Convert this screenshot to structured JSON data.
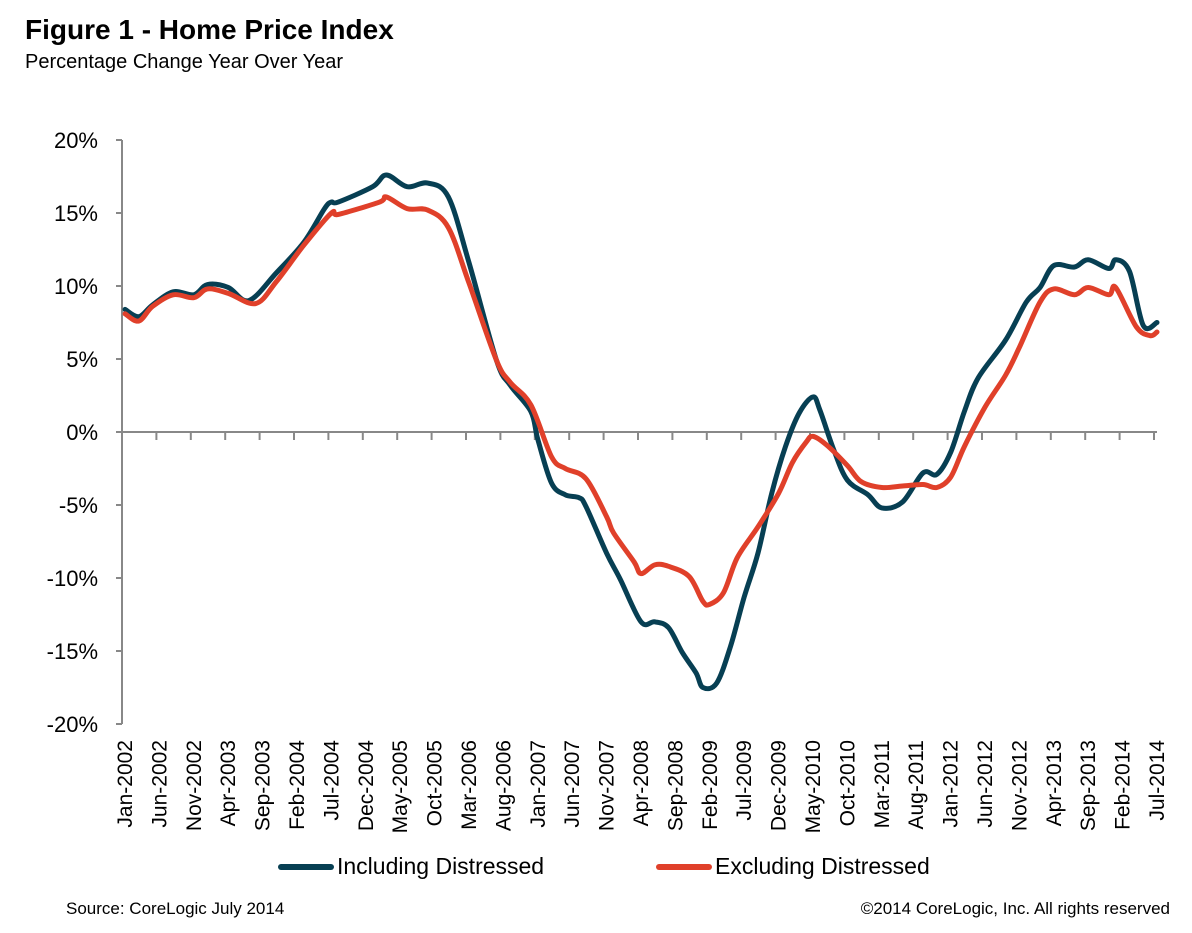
{
  "chart_data": {
    "type": "line",
    "title": "Figure 1 - Home Price Index",
    "subtitle": "Percentage Change Year Over Year",
    "xlabel": "",
    "ylabel": "",
    "ylim": [
      -20,
      20
    ],
    "yticks": [
      20,
      15,
      10,
      5,
      0,
      -5,
      -10,
      -15,
      -20
    ],
    "ytick_labels": [
      "20%",
      "15%",
      "10%",
      "5%",
      "0%",
      "-5%",
      "-10%",
      "-15%",
      "-20%"
    ],
    "xlim": [
      "2002-01",
      "2014-07"
    ],
    "xtick_labels": [
      "Jan-2002",
      "Jun-2002",
      "Nov-2002",
      "Apr-2003",
      "Sep-2003",
      "Feb-2004",
      "Jul-2004",
      "Dec-2004",
      "May-2005",
      "Oct-2005",
      "Mar-2006",
      "Aug-2006",
      "Jan-2007",
      "Jun-2007",
      "Nov-2007",
      "Apr-2008",
      "Sep-2008",
      "Feb-2009",
      "Jul-2009",
      "Dec-2009",
      "May-2010",
      "Oct-2010",
      "Mar-2011",
      "Aug-2011",
      "Jan-2012",
      "Jun-2012",
      "Nov-2012",
      "Apr-2013",
      "Sep-2013",
      "Feb-2014",
      "Jul-2014"
    ],
    "grid": false,
    "legend_position": "bottom",
    "series": [
      {
        "name": "Including Distressed",
        "color": "#073f53",
        "points": [
          [
            "2002-01",
            8.4
          ],
          [
            "2002-03",
            7.9
          ],
          [
            "2002-05",
            8.7
          ],
          [
            "2002-08",
            9.6
          ],
          [
            "2002-11",
            9.4
          ],
          [
            "2003-01",
            10.1
          ],
          [
            "2003-04",
            9.9
          ],
          [
            "2003-07",
            9.0
          ],
          [
            "2003-11",
            10.9
          ],
          [
            "2004-03",
            13.0
          ],
          [
            "2004-06",
            15.3
          ],
          [
            "2004-07",
            15.75
          ],
          [
            "2004-08",
            15.75
          ],
          [
            "2005-01",
            16.8
          ],
          [
            "2005-03",
            17.6
          ],
          [
            "2005-06",
            16.8
          ],
          [
            "2005-09",
            17.05
          ],
          [
            "2005-12",
            16.1
          ],
          [
            "2006-03",
            11.6
          ],
          [
            "2006-07",
            4.9
          ],
          [
            "2006-09",
            3.2
          ],
          [
            "2006-12",
            1.4
          ],
          [
            "2007-01",
            -0.5
          ],
          [
            "2007-03",
            -3.5
          ],
          [
            "2007-05",
            -4.3
          ],
          [
            "2007-07",
            -4.5
          ],
          [
            "2007-08",
            -5.1
          ],
          [
            "2007-11",
            -8.3
          ],
          [
            "2008-01",
            -10.1
          ],
          [
            "2008-04",
            -13.0
          ],
          [
            "2008-06",
            -13.0
          ],
          [
            "2008-08",
            -13.4
          ],
          [
            "2008-10",
            -15.1
          ],
          [
            "2008-12",
            -16.5
          ],
          [
            "2009-01",
            -17.5
          ],
          [
            "2009-03",
            -17.2
          ],
          [
            "2009-05",
            -14.7
          ],
          [
            "2009-07",
            -11.3
          ],
          [
            "2009-09",
            -8.3
          ],
          [
            "2009-11",
            -4.2
          ],
          [
            "2010-01",
            -1.0
          ],
          [
            "2010-03",
            1.3
          ],
          [
            "2010-05",
            2.4
          ],
          [
            "2010-06",
            1.5
          ],
          [
            "2010-08",
            -1.2
          ],
          [
            "2010-10",
            -3.3
          ],
          [
            "2011-01",
            -4.3
          ],
          [
            "2011-03",
            -5.2
          ],
          [
            "2011-06",
            -4.8
          ],
          [
            "2011-09",
            -2.8
          ],
          [
            "2011-11",
            -2.9
          ],
          [
            "2012-01",
            -1.4
          ],
          [
            "2012-03",
            1.4
          ],
          [
            "2012-05",
            3.7
          ],
          [
            "2012-09",
            6.3
          ],
          [
            "2012-12",
            8.9
          ],
          [
            "2013-02",
            9.9
          ],
          [
            "2013-04",
            11.4
          ],
          [
            "2013-07",
            11.3
          ],
          [
            "2013-09",
            11.8
          ],
          [
            "2013-12",
            11.2
          ],
          [
            "2014-01",
            11.8
          ],
          [
            "2014-03",
            11.0
          ],
          [
            "2014-05",
            7.3
          ],
          [
            "2014-07",
            7.5
          ]
        ]
      },
      {
        "name": "Excluding Distressed",
        "color": "#e0402a",
        "points": [
          [
            "2002-01",
            8.1
          ],
          [
            "2002-03",
            7.6
          ],
          [
            "2002-05",
            8.6
          ],
          [
            "2002-08",
            9.4
          ],
          [
            "2002-11",
            9.2
          ],
          [
            "2003-01",
            9.8
          ],
          [
            "2003-04",
            9.5
          ],
          [
            "2003-08",
            8.8
          ],
          [
            "2003-11",
            10.3
          ],
          [
            "2004-03",
            12.8
          ],
          [
            "2004-07",
            15.0
          ],
          [
            "2004-08",
            14.9
          ],
          [
            "2005-02",
            15.75
          ],
          [
            "2005-03",
            16.1
          ],
          [
            "2005-06",
            15.3
          ],
          [
            "2005-09",
            15.2
          ],
          [
            "2005-12",
            14.0
          ],
          [
            "2006-03",
            10.2
          ],
          [
            "2006-07",
            4.9
          ],
          [
            "2006-09",
            3.4
          ],
          [
            "2006-12",
            1.85
          ],
          [
            "2007-03",
            -1.7
          ],
          [
            "2007-05",
            -2.5
          ],
          [
            "2007-08",
            -3.2
          ],
          [
            "2007-11",
            -5.8
          ],
          [
            "2007-12",
            -6.9
          ],
          [
            "2008-03",
            -8.9
          ],
          [
            "2008-04",
            -9.7
          ],
          [
            "2008-06",
            -9.1
          ],
          [
            "2008-08",
            -9.2
          ],
          [
            "2008-11",
            -9.9
          ],
          [
            "2009-01",
            -11.6
          ],
          [
            "2009-02",
            -11.8
          ],
          [
            "2009-04",
            -11.0
          ],
          [
            "2009-06",
            -8.6
          ],
          [
            "2009-09",
            -6.5
          ],
          [
            "2009-12",
            -4.2
          ],
          [
            "2010-02",
            -2.1
          ],
          [
            "2010-04",
            -0.7
          ],
          [
            "2010-05",
            -0.3
          ],
          [
            "2010-07",
            -0.9
          ],
          [
            "2010-10",
            -2.3
          ],
          [
            "2010-12",
            -3.4
          ],
          [
            "2011-03",
            -3.8
          ],
          [
            "2011-06",
            -3.7
          ],
          [
            "2011-09",
            -3.6
          ],
          [
            "2011-11",
            -3.8
          ],
          [
            "2012-01",
            -3.1
          ],
          [
            "2012-03",
            -1.0
          ],
          [
            "2012-06",
            1.7
          ],
          [
            "2012-09",
            3.9
          ],
          [
            "2012-11",
            5.8
          ],
          [
            "2013-02",
            8.9
          ],
          [
            "2013-04",
            9.8
          ],
          [
            "2013-07",
            9.4
          ],
          [
            "2013-09",
            9.9
          ],
          [
            "2013-12",
            9.4
          ],
          [
            "2014-01",
            9.9
          ],
          [
            "2014-04",
            7.2
          ],
          [
            "2014-06",
            6.6
          ],
          [
            "2014-07",
            6.85
          ]
        ]
      }
    ]
  },
  "footer": {
    "source": "Source: CoreLogic  July 2014",
    "copyright": "©2014 CoreLogic, Inc. All rights reserved"
  },
  "colors": {
    "axis": "#888888"
  }
}
